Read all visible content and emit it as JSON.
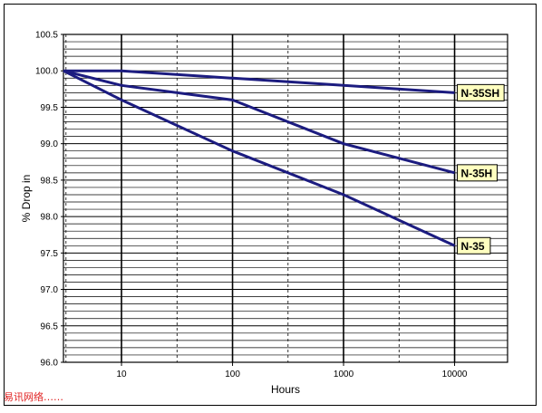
{
  "watermark": "易讯网络……",
  "chart_data": {
    "type": "line",
    "title": "",
    "xlabel": "Hours",
    "ylabel": "% Drop in",
    "x_scale": "log",
    "xlim": [
      3,
      30000
    ],
    "ylim": [
      96.0,
      100.5
    ],
    "x_ticks": [
      10,
      100,
      1000,
      10000
    ],
    "x_tick_labels": [
      "10",
      "100",
      "1000",
      "10000"
    ],
    "y_ticks": [
      96.0,
      96.5,
      97.0,
      97.5,
      98.0,
      98.5,
      99.0,
      99.5,
      100.0,
      100.5
    ],
    "y_tick_labels": [
      "96.0",
      "96.5",
      "97.0",
      "97.5",
      "98.0",
      "98.5",
      "99.0",
      "99.5",
      "100.0",
      "100.5"
    ],
    "grid": true,
    "series": [
      {
        "name": "N-35SH",
        "x": [
          3,
          10,
          100,
          1000,
          10000
        ],
        "values": [
          100.0,
          100.0,
          99.9,
          99.8,
          99.7
        ],
        "color": "#1c1c80"
      },
      {
        "name": "N-35H",
        "x": [
          3,
          10,
          100,
          1000,
          10000
        ],
        "values": [
          100.0,
          99.8,
          99.6,
          99.0,
          98.6
        ],
        "color": "#1c1c80"
      },
      {
        "name": "N-35",
        "x": [
          3,
          10,
          100,
          1000,
          10000
        ],
        "values": [
          100.0,
          99.6,
          98.9,
          98.3,
          97.6
        ],
        "color": "#1c1c80"
      }
    ],
    "label_box_color": "#ffffc0"
  }
}
